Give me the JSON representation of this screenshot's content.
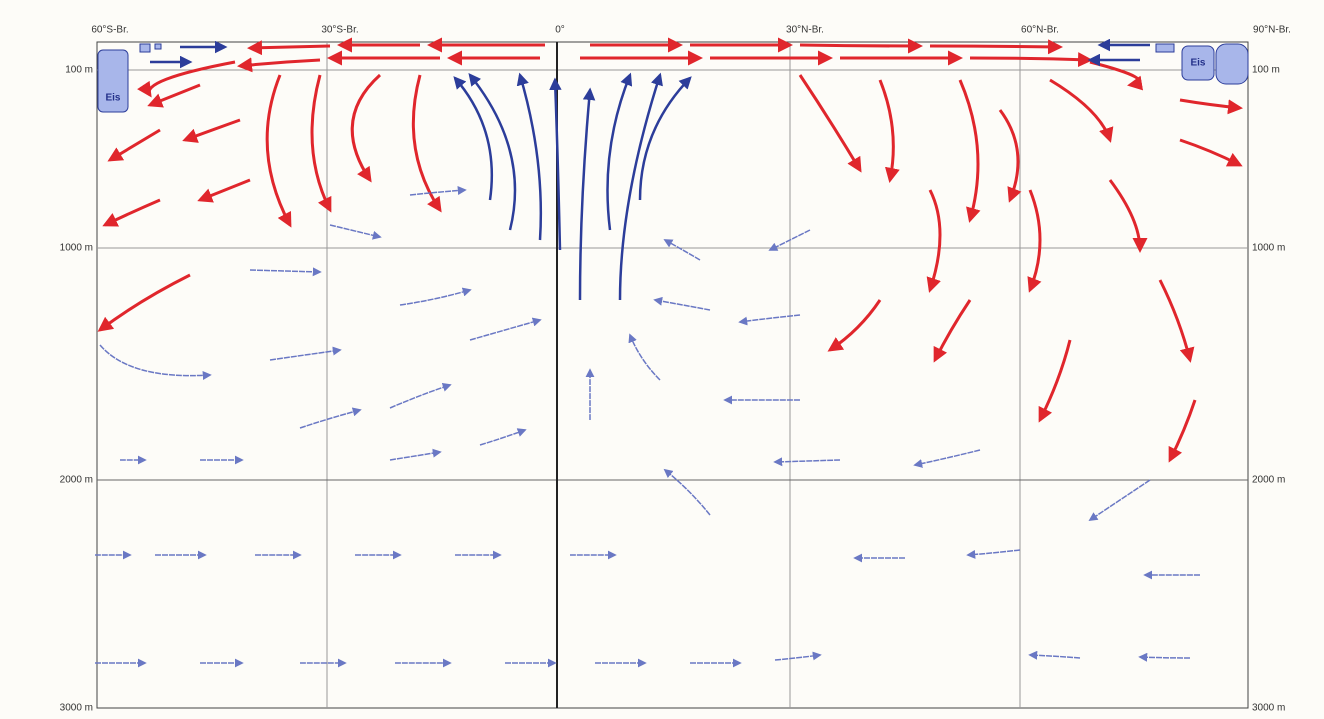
{
  "labels": {
    "top": [
      "60°S-Br.",
      "30°S-Br.",
      "0°",
      "30°N-Br.",
      "60°N-Br.",
      "90°N-Br."
    ],
    "left": [
      "100 m",
      "1000 m",
      "2000 m",
      "3000 m"
    ],
    "right": [
      "100 m",
      "1000 m",
      "2000 m",
      "3000 m"
    ],
    "ice": [
      "Eis",
      "Eis"
    ]
  }
}
